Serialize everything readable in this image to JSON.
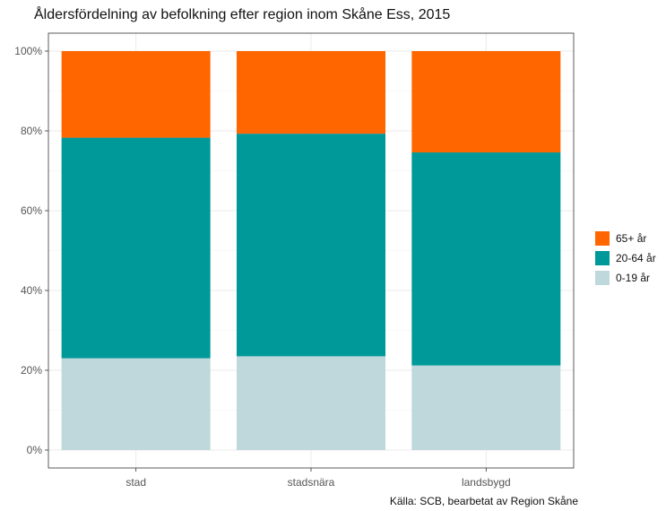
{
  "title": "Åldersfördelning av befolkning efter region inom Skåne Ess, 2015",
  "source": "Källa: SCB, bearbetat av Region Skåne",
  "chart_data": {
    "type": "bar",
    "stacked": true,
    "title": "Åldersfördelning av befolkning efter region inom Skåne Ess, 2015",
    "xlabel": "",
    "ylabel": "",
    "categories": [
      "stad",
      "stadsnära",
      "landsbygd"
    ],
    "ylim": [
      0,
      100
    ],
    "yticks": [
      0,
      20,
      40,
      60,
      80,
      100
    ],
    "ytick_labels": [
      "0%",
      "20%",
      "40%",
      "60%",
      "80%",
      "100%"
    ],
    "grid": true,
    "legend_position": "right",
    "series": [
      {
        "name": "0-19 år",
        "color": "#bfd8dc",
        "values": [
          23.0,
          23.5,
          21.2
        ]
      },
      {
        "name": "20-64 år",
        "color": "#009999",
        "values": [
          55.3,
          55.8,
          53.4
        ]
      },
      {
        "name": "65+ år",
        "color": "#ff6600",
        "values": [
          21.7,
          20.7,
          25.4
        ]
      }
    ],
    "legend_order": [
      "65+ år",
      "20-64 år",
      "0-19 år"
    ]
  }
}
